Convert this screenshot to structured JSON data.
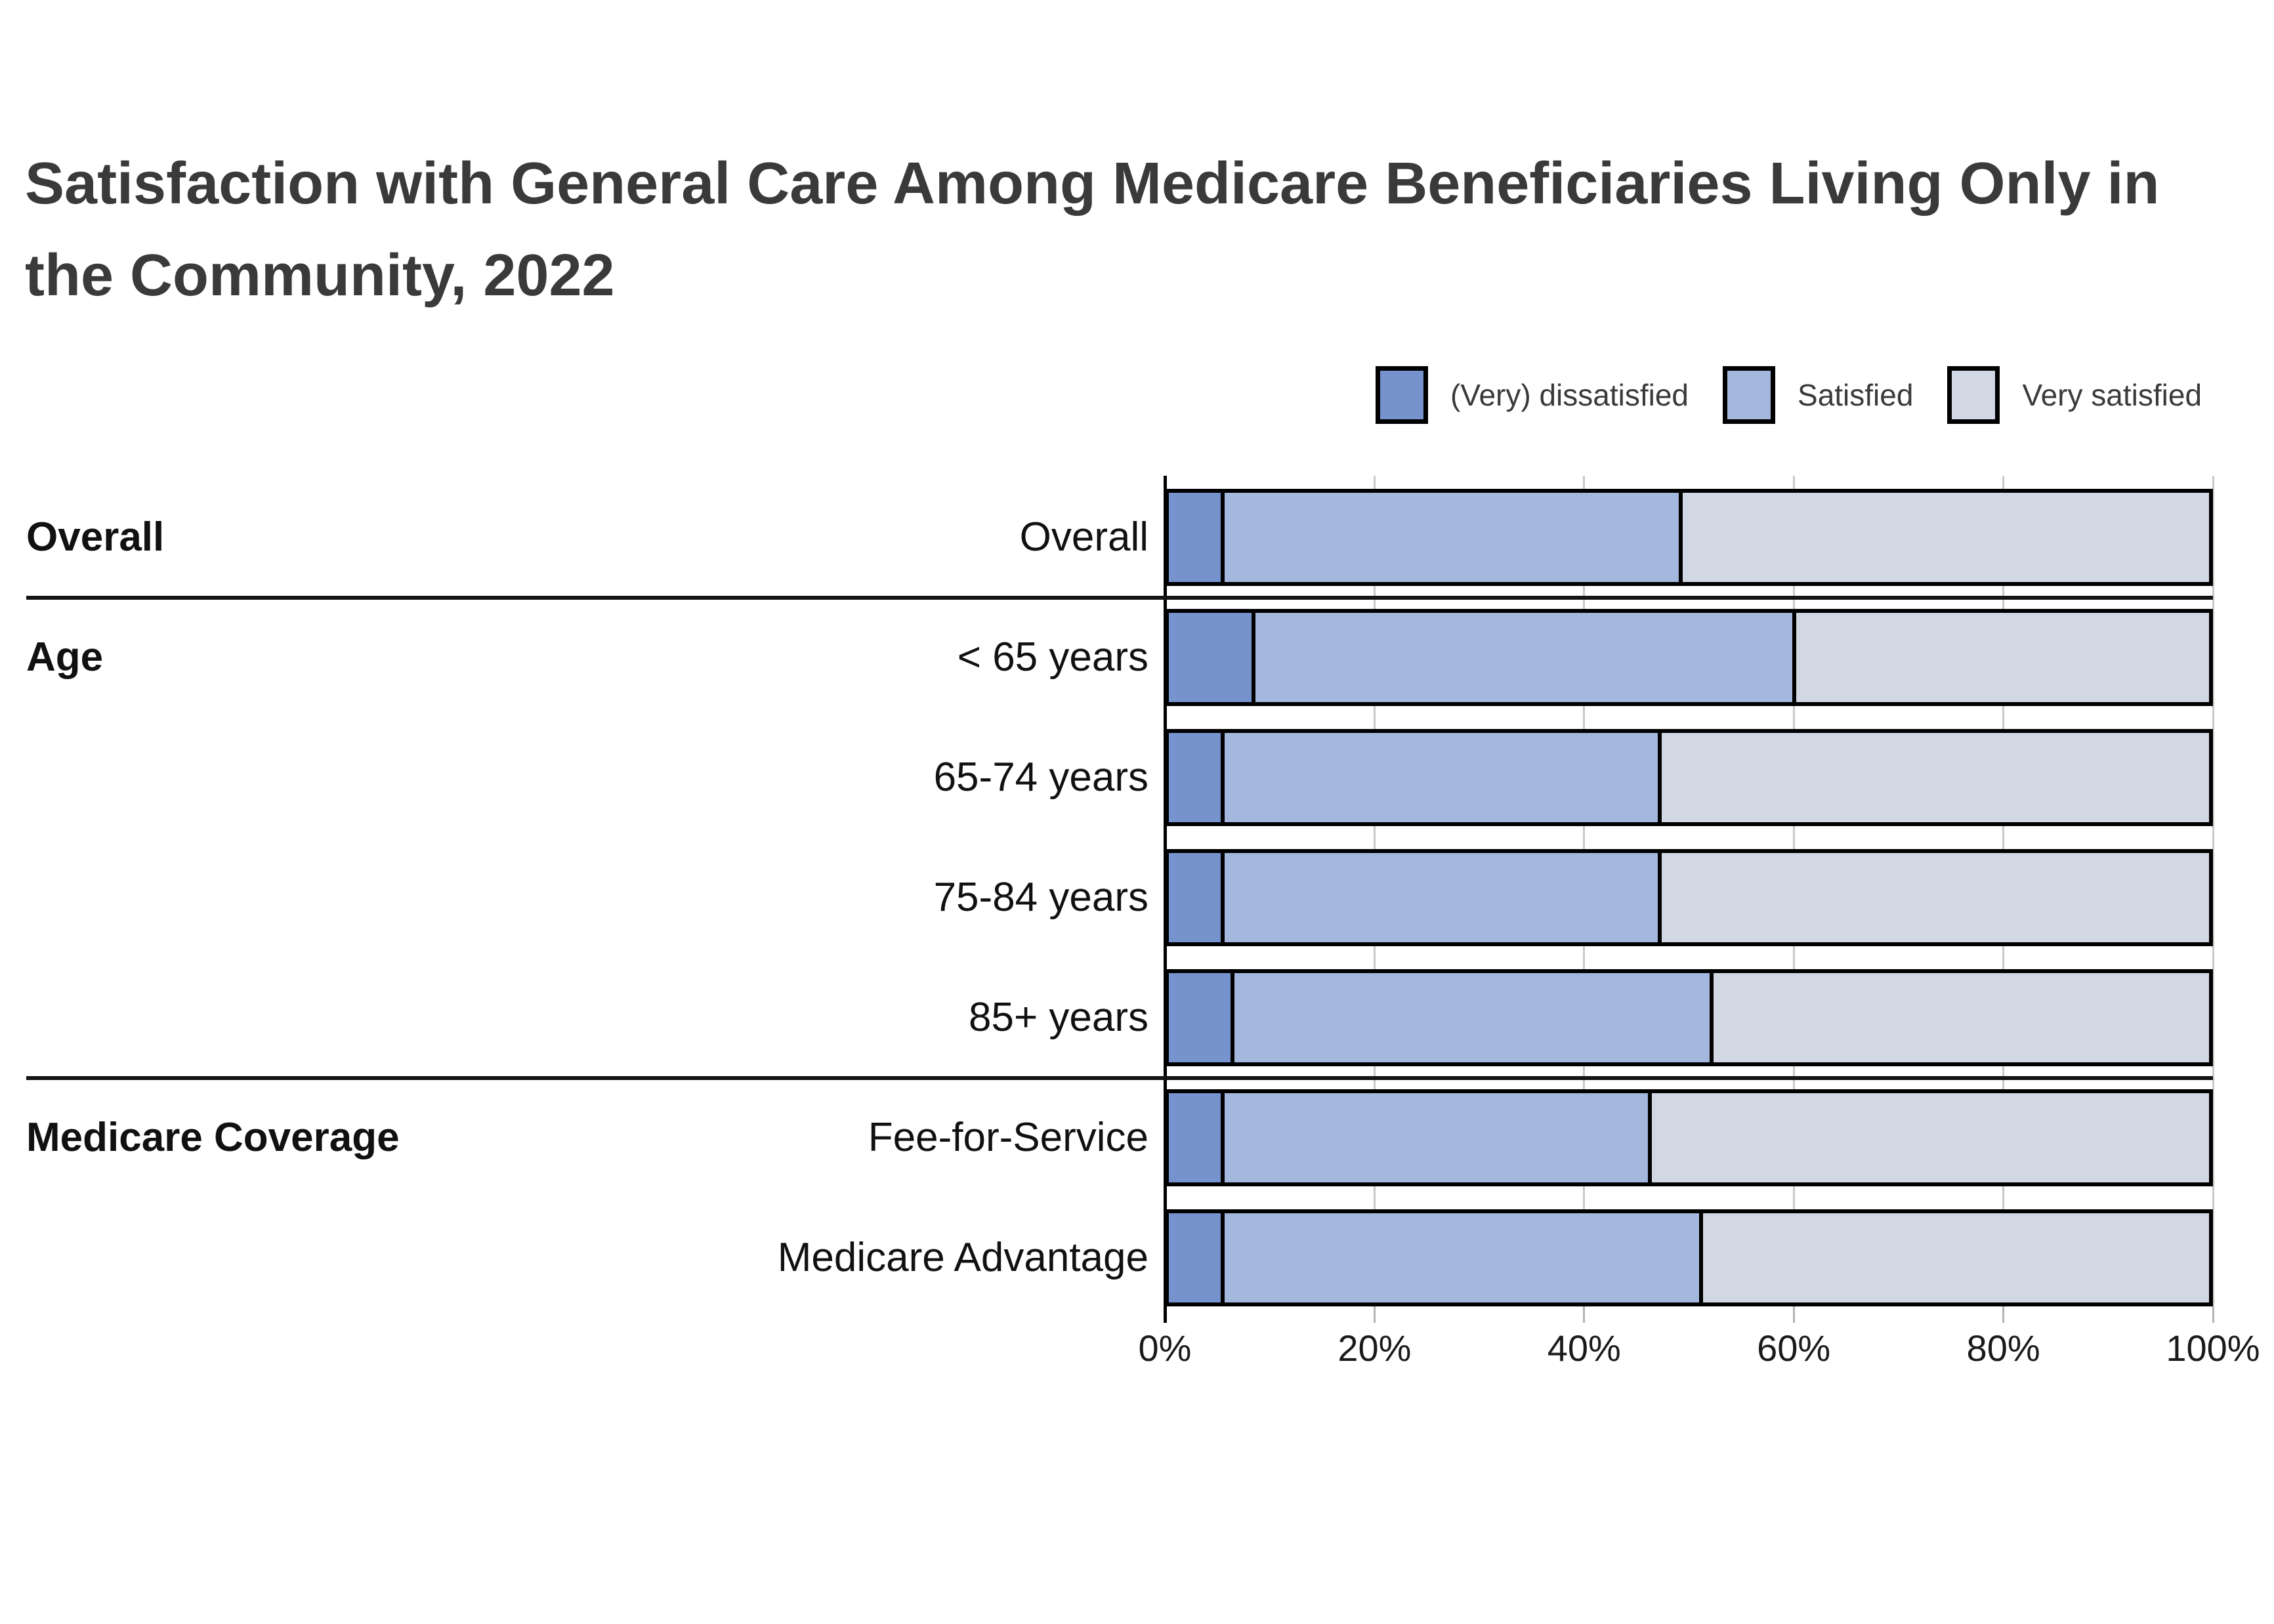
{
  "page": {
    "background": "#ffffff"
  },
  "title": {
    "text": "Satisfaction with General Care Among Medicare Beneficiaries Living Only in the Community, 2022",
    "color": "#3a3a3a"
  },
  "chart_data": {
    "type": "bar",
    "subtype": "horizontal-stacked-100pct",
    "title": "Satisfaction with General Care Among Medicare Beneficiaries Living Only in the Community, 2022",
    "categories": [
      "Overall",
      "< 65 years",
      "65-74 years",
      "75-84 years",
      "85+ years",
      "Fee-for-Service",
      "Medicare Advantage"
    ],
    "groups": [
      {
        "label": "Overall",
        "row_indexes": [
          0
        ]
      },
      {
        "label": "Age",
        "row_indexes": [
          1,
          2,
          3,
          4
        ]
      },
      {
        "label": "Medicare Coverage",
        "row_indexes": [
          5,
          6
        ]
      }
    ],
    "series": [
      {
        "name": "(Very) dissatisfied",
        "color": "#7693CE",
        "values": [
          5,
          8,
          5,
          5,
          6,
          5,
          5
        ]
      },
      {
        "name": "Satisfied",
        "color": "#A3B8DC",
        "values": [
          44,
          52,
          42,
          42,
          46,
          41,
          46
        ]
      },
      {
        "name": "Very satisfied",
        "color": "#D2D8E3",
        "values": [
          51,
          40,
          53,
          53,
          48,
          54,
          49
        ]
      }
    ],
    "x_axis": {
      "min": 0,
      "max": 100,
      "tick_labels": [
        "0%",
        "20%",
        "40%",
        "60%",
        "80%",
        "100%"
      ],
      "tick_values": [
        0,
        20,
        40,
        60,
        80,
        100
      ]
    },
    "grid": true,
    "legend_position": "top-right",
    "bar_outline_color": "#000000",
    "gridline_color": "#c9c9c9"
  }
}
